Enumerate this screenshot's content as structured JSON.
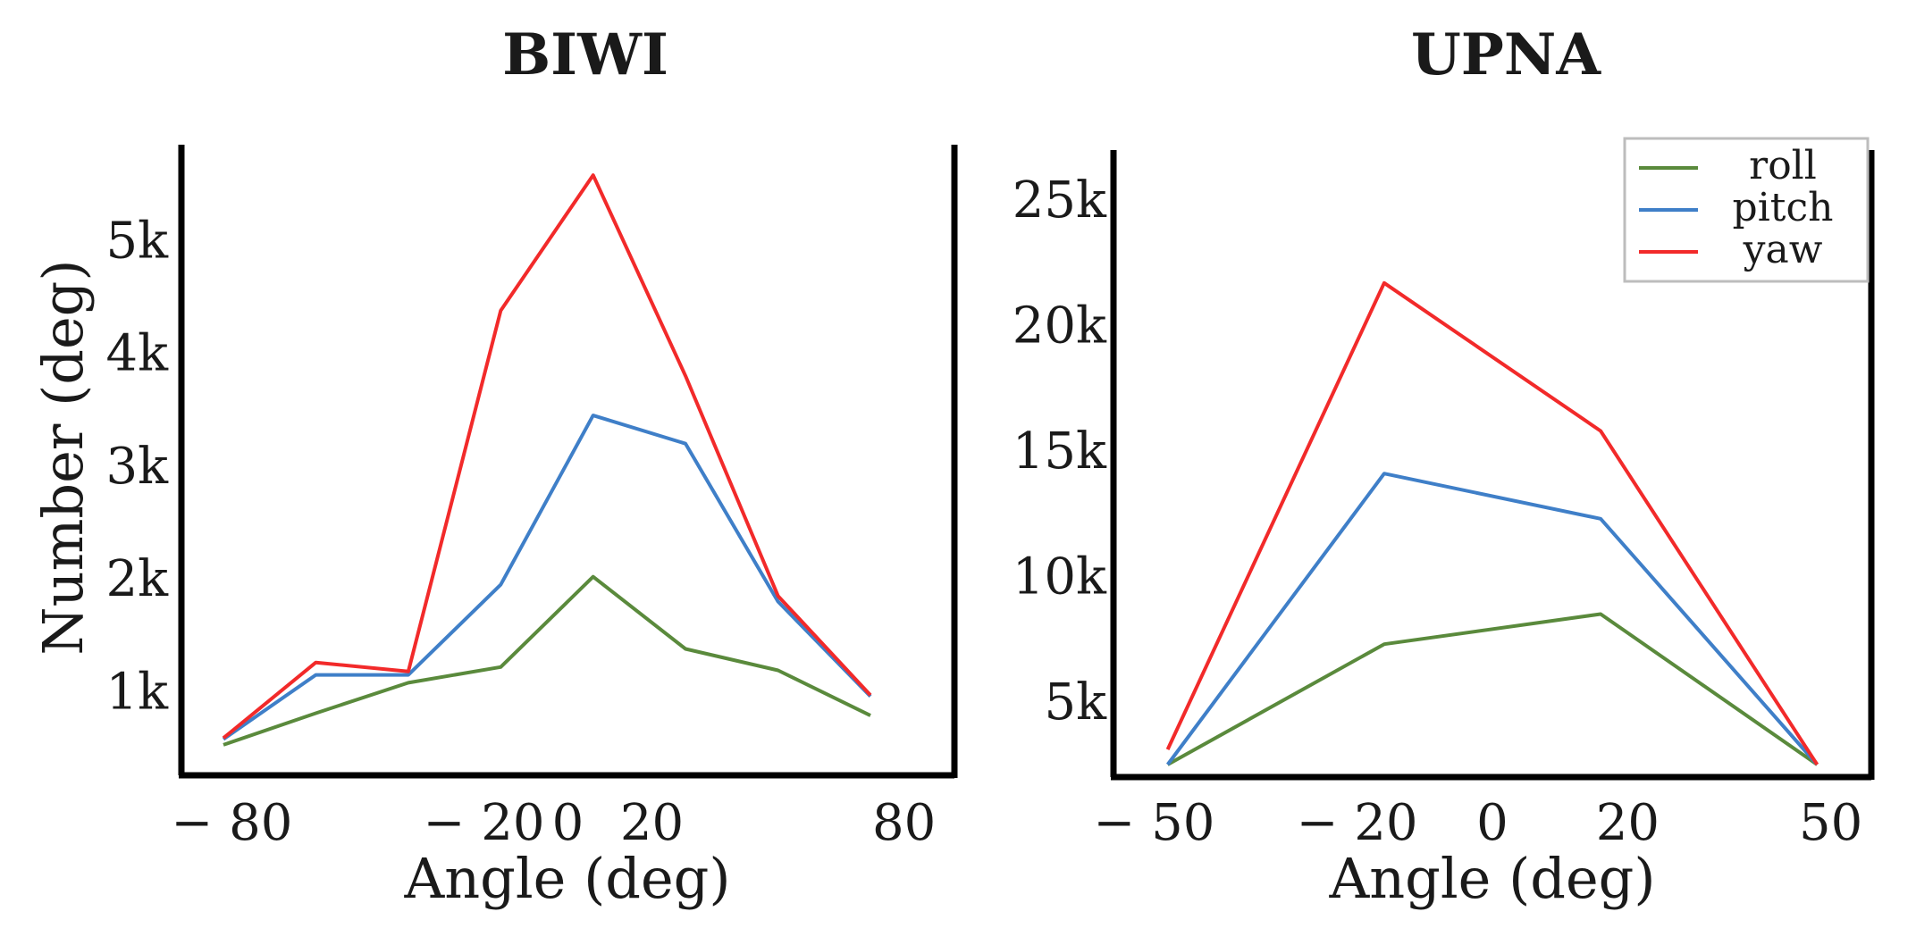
{
  "chart_data": [
    {
      "type": "line",
      "title": "BIWI",
      "xlabel": "Angle (deg)",
      "ylabel": "Number (deg)",
      "xlim": [
        -92,
        92
      ],
      "ylim": [
        260,
        5850
      ],
      "xticks": [
        -80,
        -20,
        0,
        20,
        80
      ],
      "xtick_labels": [
        "− 80",
        "− 20",
        "0",
        "20",
        "80"
      ],
      "yticks": [
        1000,
        2000,
        3000,
        4000,
        5000
      ],
      "ytick_labels": [
        "1k",
        "2k",
        "3k",
        "4k",
        "5k"
      ],
      "x": [
        -82,
        -60,
        -38,
        -16,
        6,
        28,
        50,
        72
      ],
      "series": [
        {
          "name": "roll",
          "color": "#5a8a3c",
          "values": [
            530,
            810,
            1080,
            1220,
            2020,
            1380,
            1190,
            790
          ]
        },
        {
          "name": "pitch",
          "color": "#3f7fc8",
          "values": [
            580,
            1150,
            1150,
            1950,
            3450,
            3200,
            1800,
            960
          ]
        },
        {
          "name": "yaw",
          "color": "#f22a2a",
          "values": [
            590,
            1260,
            1180,
            4380,
            5580,
            3800,
            1850,
            970
          ]
        }
      ],
      "legend": "none",
      "grid": false
    },
    {
      "type": "line",
      "title": "UPNA",
      "xlabel": "Angle (deg)",
      "ylabel": "",
      "xlim": [
        -56,
        56
      ],
      "ylim": [
        2000,
        27000
      ],
      "xticks": [
        -50,
        -20,
        0,
        20,
        50
      ],
      "xtick_labels": [
        "− 50",
        "− 20",
        "0",
        "20",
        "50"
      ],
      "yticks": [
        5000,
        10000,
        15000,
        20000,
        25000
      ],
      "ytick_labels": [
        "5k",
        "10k",
        "15k",
        "20k",
        "25k"
      ],
      "x": [
        -48,
        -16,
        16,
        48
      ],
      "series": [
        {
          "name": "roll",
          "color": "#5a8a3c",
          "values": [
            2500,
            7300,
            8500,
            2500
          ]
        },
        {
          "name": "pitch",
          "color": "#3f7fc8",
          "values": [
            2500,
            14100,
            12300,
            2500
          ]
        },
        {
          "name": "yaw",
          "color": "#f22a2a",
          "values": [
            3100,
            21700,
            15800,
            2500
          ]
        }
      ],
      "legend": "top-right",
      "grid": false
    }
  ]
}
